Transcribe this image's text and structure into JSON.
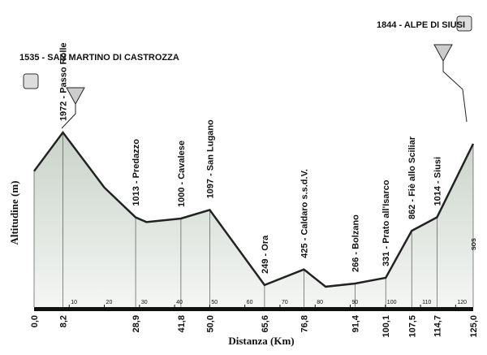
{
  "chart_data": {
    "type": "area",
    "ylabel": "Altitudine (m)",
    "xlabel": "Distanza (Km)",
    "x": [
      0,
      8.2,
      20,
      28.9,
      32,
      41.8,
      50,
      65.6,
      76.8,
      83,
      91.4,
      100.1,
      107.5,
      114.7,
      125
    ],
    "x_labels": [
      "0,0",
      "8,2",
      null,
      "28,9",
      null,
      "41,8",
      "50,0",
      "65,6",
      "76,8",
      null,
      "91,4",
      "100,1",
      "107,5",
      "114,7",
      "125,0"
    ],
    "values": [
      1535,
      1972,
      1350,
      1013,
      960,
      1000,
      1097,
      249,
      425,
      230,
      266,
      331,
      862,
      1014,
      1844
    ],
    "value_labels": [
      "1535 - SAN MARTINO DI CASTROZZA",
      "1972 - Passo Rolle",
      null,
      "1013 - Predazzo",
      null,
      "1000 - Cavalese",
      "1097 - San Lugano",
      "249 - Ora",
      "425 - Caldaro s.s.d.V.",
      null,
      "266 - Bolzano",
      "331 - Prato all'Isarco",
      "862 - Fiè allo Sciliar",
      "1014 - Siusi",
      "1844 - ALPE DI SIUSI"
    ],
    "end_label": "SOS",
    "xlim": [
      0,
      125
    ],
    "ylim": [
      0,
      2000
    ],
    "xticks": [
      10,
      20,
      30,
      40,
      50,
      60,
      70,
      80,
      90,
      100,
      110,
      120
    ],
    "color": "#222222"
  }
}
